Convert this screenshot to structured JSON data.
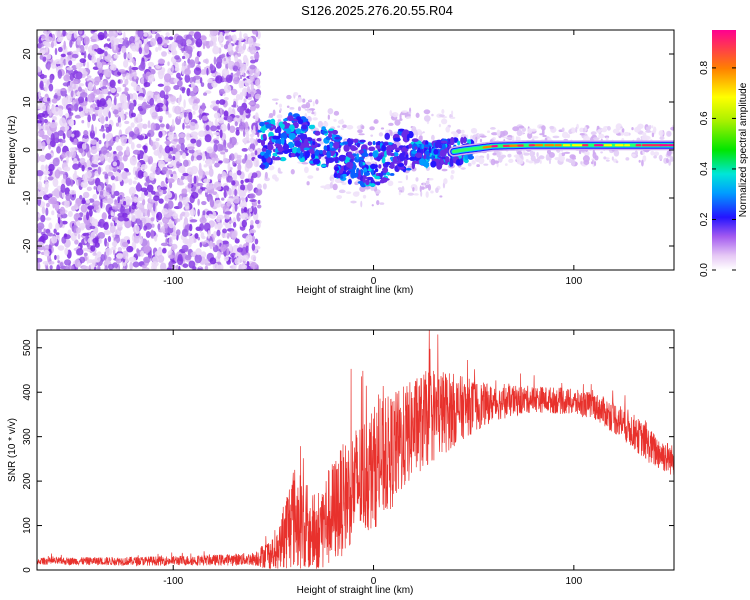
{
  "title": "S126.2025.276.20.55.R04",
  "chart_data": [
    {
      "type": "heatmap",
      "xlabel": "Height of straight line (km)",
      "ylabel": "Frequency (Hz)",
      "xlim": [
        -168,
        150
      ],
      "ylim": [
        -25,
        25
      ],
      "xticks": [
        -100,
        0,
        100
      ],
      "yticks": [
        -20,
        -10,
        0,
        10,
        20
      ],
      "colorbar": {
        "label": "Normalized spectral amplitude",
        "range": [
          0,
          0.95
        ],
        "ticks": [
          0.0,
          0.2,
          0.4,
          0.6,
          0.8
        ]
      },
      "description": {
        "noise_region_x": [
          -168,
          -57
        ],
        "signal_track": [
          {
            "x": -55,
            "y": 1
          },
          {
            "x": -40,
            "y": 3
          },
          {
            "x": -25,
            "y": 1
          },
          {
            "x": -15,
            "y": -2
          },
          {
            "x": 0,
            "y": -3
          },
          {
            "x": 15,
            "y": 0
          },
          {
            "x": 30,
            "y": -1
          },
          {
            "x": 45,
            "y": 0
          },
          {
            "x": 60,
            "y": 0.8
          },
          {
            "x": 80,
            "y": 1
          },
          {
            "x": 100,
            "y": 1
          },
          {
            "x": 120,
            "y": 1
          },
          {
            "x": 150,
            "y": 1
          }
        ]
      }
    },
    {
      "type": "line",
      "xlabel": "Height of straight line (km)",
      "ylabel": "SNR (10 * v/v)",
      "xlim": [
        -168,
        150
      ],
      "ylim": [
        0,
        540
      ],
      "xticks": [
        -100,
        0,
        100
      ],
      "yticks": [
        0,
        100,
        200,
        300,
        400,
        500
      ],
      "series": [
        {
          "name": "SNR",
          "color": "#e8312c",
          "envelope": [
            {
              "x": -168,
              "base": 20,
              "spread": 8
            },
            {
              "x": -120,
              "base": 20,
              "spread": 10
            },
            {
              "x": -80,
              "base": 22,
              "spread": 12
            },
            {
              "x": -60,
              "base": 25,
              "spread": 15
            },
            {
              "x": -50,
              "base": 40,
              "spread": 40
            },
            {
              "x": -40,
              "base": 120,
              "spread": 120
            },
            {
              "x": -30,
              "base": 80,
              "spread": 90
            },
            {
              "x": -20,
              "base": 130,
              "spread": 120
            },
            {
              "x": -10,
              "base": 190,
              "spread": 130
            },
            {
              "x": 0,
              "base": 230,
              "spread": 140
            },
            {
              "x": 10,
              "base": 270,
              "spread": 130
            },
            {
              "x": 20,
              "base": 320,
              "spread": 110
            },
            {
              "x": 30,
              "base": 350,
              "spread": 110
            },
            {
              "x": 45,
              "base": 365,
              "spread": 70
            },
            {
              "x": 60,
              "base": 375,
              "spread": 40
            },
            {
              "x": 80,
              "base": 385,
              "spread": 30
            },
            {
              "x": 95,
              "base": 380,
              "spread": 30
            },
            {
              "x": 110,
              "base": 370,
              "spread": 30
            },
            {
              "x": 125,
              "base": 330,
              "spread": 40
            },
            {
              "x": 140,
              "base": 270,
              "spread": 40
            },
            {
              "x": 150,
              "base": 245,
              "spread": 35
            }
          ]
        }
      ]
    }
  ]
}
